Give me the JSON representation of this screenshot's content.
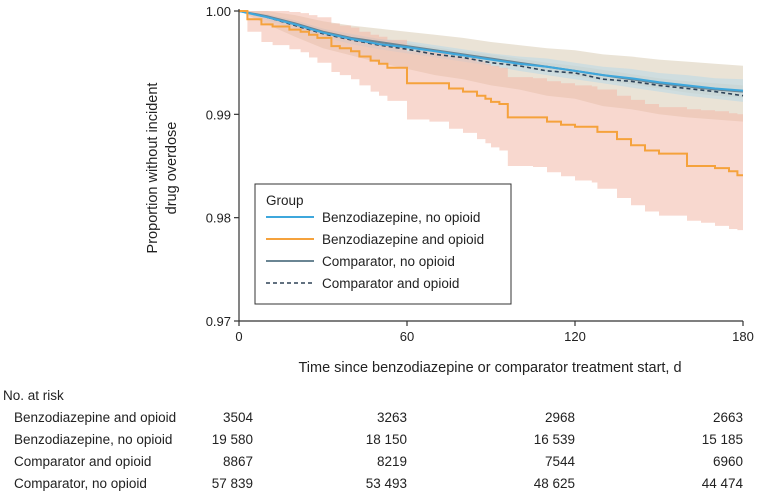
{
  "chart_data": {
    "type": "line",
    "title": "",
    "xlabel": "Time since benzodiazepine or comparator treatment start, d",
    "ylabel": [
      "Proportion without incident",
      "drug overdose"
    ],
    "xlim": [
      0,
      180
    ],
    "ylim": [
      0.97,
      1.0
    ],
    "x_ticks": [
      0,
      60,
      120,
      180
    ],
    "x_tick_labels": [
      "0",
      "60",
      "120",
      "180"
    ],
    "y_ticks": [
      0.97,
      0.98,
      0.99,
      1.0
    ],
    "y_tick_labels": [
      "0.97",
      "0.98",
      "0.99",
      "1.00"
    ],
    "grid": false,
    "legend": {
      "title": "Group",
      "placement": "bottom-left",
      "entries": [
        {
          "label": "Benzodiazepine, no opioid",
          "color": "#3ea7dc",
          "dash": "solid"
        },
        {
          "label": "Benzodiazepine and opioid",
          "color": "#f5a23c",
          "dash": "solid"
        },
        {
          "label": "Comparator, no opioid",
          "color": "#6a8593",
          "dash": "solid"
        },
        {
          "label": "Comparator and opioid",
          "color": "#2e4257",
          "dash": "dashed"
        }
      ]
    },
    "series": [
      {
        "name": "Comparator, no opioid",
        "color": "#6a8593",
        "dash": "solid",
        "band_color": "#d8ccb4",
        "x": [
          0,
          10,
          20,
          30,
          40,
          50,
          60,
          70,
          80,
          90,
          100,
          110,
          120,
          130,
          140,
          150,
          160,
          170,
          180
        ],
        "y": [
          1.0,
          0.9995,
          0.9988,
          0.998,
          0.9974,
          0.997,
          0.9966,
          0.9962,
          0.9958,
          0.9954,
          0.995,
          0.9946,
          0.9942,
          0.9938,
          0.9934,
          0.993,
          0.9927,
          0.9924,
          0.9922
        ],
        "lower": [
          1.0,
          0.9993,
          0.9985,
          0.9977,
          0.9971,
          0.9967,
          0.9963,
          0.9959,
          0.9955,
          0.995,
          0.9946,
          0.9942,
          0.9937,
          0.9933,
          0.9929,
          0.9925,
          0.9921,
          0.9918,
          0.9916
        ],
        "upper": [
          1.0,
          0.9997,
          0.9991,
          0.9983,
          0.9977,
          0.9973,
          0.9969,
          0.9965,
          0.9961,
          0.9958,
          0.9954,
          0.995,
          0.9947,
          0.9943,
          0.9939,
          0.9935,
          0.9932,
          0.993,
          0.9928
        ]
      },
      {
        "name": "Comparator and opioid",
        "color": "#2e4257",
        "dash": "dashed",
        "band_color": "#d8ccb4",
        "x": [
          0,
          10,
          20,
          30,
          40,
          50,
          60,
          70,
          80,
          90,
          100,
          110,
          120,
          130,
          140,
          150,
          160,
          170,
          180
        ],
        "y": [
          1.0,
          0.9994,
          0.9986,
          0.9978,
          0.9972,
          0.9967,
          0.9963,
          0.9958,
          0.9955,
          0.995,
          0.9947,
          0.9942,
          0.994,
          0.9934,
          0.9932,
          0.9928,
          0.9925,
          0.9922,
          0.9918
        ],
        "lower": [
          1.0,
          0.9987,
          0.9975,
          0.9964,
          0.9957,
          0.995,
          0.9944,
          0.9938,
          0.9934,
          0.9928,
          0.9924,
          0.9918,
          0.9915,
          0.9908,
          0.9905,
          0.99,
          0.9897,
          0.9895,
          0.9893
        ],
        "upper": [
          1.0,
          1.0,
          0.9996,
          0.999,
          0.9986,
          0.9983,
          0.998,
          0.9977,
          0.9974,
          0.997,
          0.9967,
          0.9964,
          0.9962,
          0.9958,
          0.9956,
          0.9953,
          0.9951,
          0.9949,
          0.9947
        ]
      },
      {
        "name": "Benzodiazepine, no opioid",
        "color": "#3ea7dc",
        "dash": "solid",
        "band_color": "#b8d8e8",
        "x": [
          0,
          10,
          20,
          30,
          40,
          50,
          60,
          70,
          80,
          90,
          100,
          110,
          120,
          130,
          140,
          150,
          160,
          170,
          180
        ],
        "y": [
          1.0,
          0.9994,
          0.9987,
          0.9979,
          0.9973,
          0.9968,
          0.9965,
          0.9961,
          0.9957,
          0.9953,
          0.9949,
          0.9946,
          0.9942,
          0.9938,
          0.9935,
          0.9931,
          0.9928,
          0.9925,
          0.9923
        ],
        "lower": [
          1.0,
          0.9991,
          0.9983,
          0.9975,
          0.9968,
          0.9963,
          0.9959,
          0.9955,
          0.9951,
          0.9947,
          0.9942,
          0.9938,
          0.9934,
          0.993,
          0.9926,
          0.9922,
          0.9918,
          0.9915,
          0.9912
        ],
        "upper": [
          1.0,
          0.9997,
          0.9991,
          0.9983,
          0.9978,
          0.9973,
          0.9971,
          0.9967,
          0.9963,
          0.9959,
          0.9956,
          0.9954,
          0.995,
          0.9946,
          0.9944,
          0.994,
          0.9938,
          0.9935,
          0.9934
        ]
      },
      {
        "name": "Benzodiazepine and opioid",
        "color": "#f5a23c",
        "dash": "solid",
        "band_color": "#f2b8a8",
        "step": true,
        "x": [
          0,
          3,
          8,
          12,
          18,
          22,
          25,
          28,
          33,
          36,
          40,
          43,
          47,
          50,
          53,
          60,
          68,
          75,
          80,
          85,
          88,
          90,
          93,
          96,
          105,
          110,
          115,
          120,
          126,
          128,
          135,
          140,
          145,
          150,
          160,
          165,
          170,
          175,
          178,
          180
        ],
        "y": [
          1.0,
          0.9992,
          0.9987,
          0.9985,
          0.9982,
          0.998,
          0.9977,
          0.9974,
          0.9966,
          0.9964,
          0.9961,
          0.9956,
          0.9952,
          0.9949,
          0.9945,
          0.993,
          0.993,
          0.9925,
          0.9922,
          0.9918,
          0.9915,
          0.9912,
          0.991,
          0.9897,
          0.9897,
          0.9893,
          0.989,
          0.9888,
          0.9888,
          0.9883,
          0.9876,
          0.987,
          0.9865,
          0.9862,
          0.985,
          0.985,
          0.9848,
          0.9845,
          0.9841,
          0.9841
        ],
        "lower": [
          1.0,
          0.998,
          0.997,
          0.9967,
          0.9963,
          0.996,
          0.9955,
          0.995,
          0.9941,
          0.9938,
          0.9934,
          0.9928,
          0.9922,
          0.9918,
          0.9913,
          0.9895,
          0.9893,
          0.9886,
          0.9882,
          0.9876,
          0.9872,
          0.9868,
          0.9865,
          0.985,
          0.9849,
          0.9844,
          0.984,
          0.9836,
          0.9834,
          0.9828,
          0.9819,
          0.9812,
          0.9806,
          0.9802,
          0.9797,
          0.9795,
          0.9792,
          0.9789,
          0.9788,
          0.9786
        ],
        "upper": [
          1.0,
          1.0,
          1.0,
          1.0,
          0.9999,
          0.9998,
          0.9996,
          0.9994,
          0.9988,
          0.9986,
          0.9984,
          0.998,
          0.9977,
          0.9975,
          0.9972,
          0.9961,
          0.996,
          0.9956,
          0.9954,
          0.9951,
          0.9949,
          0.9947,
          0.9945,
          0.9936,
          0.9935,
          0.9932,
          0.993,
          0.9928,
          0.9927,
          0.9924,
          0.9918,
          0.9914,
          0.991,
          0.9907,
          0.9905,
          0.9904,
          0.9903,
          0.9901,
          0.99,
          0.9899
        ]
      }
    ]
  },
  "risk_table": {
    "title": "No. at risk",
    "times": [
      0,
      60,
      120,
      180
    ],
    "rows": [
      {
        "label": "Benzodiazepine and opioid",
        "values": [
          "3504",
          "3263",
          "2968",
          "2663"
        ]
      },
      {
        "label": "Benzodiazepine, no opioid",
        "values": [
          "19 580",
          "18 150",
          "16 539",
          "15 185"
        ]
      },
      {
        "label": "Comparator and opioid",
        "values": [
          "8867",
          "8219",
          "7544",
          "6960"
        ]
      },
      {
        "label": "Comparator, no opioid",
        "values": [
          "57 839",
          "53 493",
          "48 625",
          "44 474"
        ]
      }
    ]
  }
}
